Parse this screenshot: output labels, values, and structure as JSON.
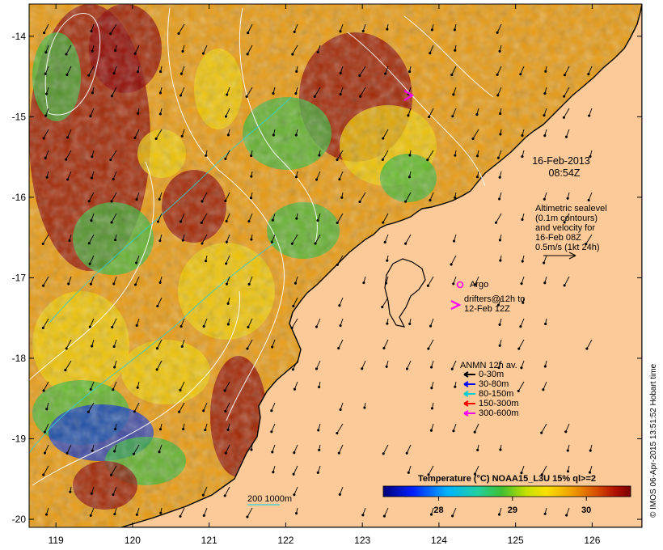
{
  "map": {
    "x_ticks": [
      "119",
      "120",
      "121",
      "122",
      "123",
      "124",
      "125",
      "126"
    ],
    "y_ticks": [
      "-14",
      "-15",
      "-16",
      "-17",
      "-18",
      "-19",
      "-20"
    ],
    "x_range": [
      118.65,
      126.65
    ],
    "y_range": [
      -20.1,
      -13.6
    ]
  },
  "annotations": {
    "date": "16-Feb-2013",
    "time": "08:54Z",
    "altimetry": [
      "Altimetric sealevel",
      "(0.1m contours)",
      "and velocity for",
      "16-Feb 08Z",
      "0.5m/s (1kt 24h)"
    ],
    "argo_label": "Argo",
    "drifters_label": [
      "drifters@12h to",
      "12-Feb 12Z"
    ]
  },
  "legend": {
    "title": "ANMN 12h av.",
    "items": [
      {
        "label": "0-30m",
        "color": "#000000"
      },
      {
        "label": "30-80m",
        "color": "#0000ff"
      },
      {
        "label": "80-150m",
        "color": "#00d0d0"
      },
      {
        "label": "150-300m",
        "color": "#ff0000"
      },
      {
        "label": "300-600m",
        "color": "#ff00ff"
      }
    ],
    "bathy_label": "200  1000m"
  },
  "colorbar": {
    "title": "Temperature (°C) NOAA15_L3U 15% ql>=2",
    "ticks": [
      "28",
      "29",
      "30"
    ],
    "min": 27.25,
    "max": 30.6
  },
  "credit": "© IMOS 06-Apr-2015 13:51:52 Hobart time",
  "colors": {
    "land": "#fcc998",
    "hot": "#8b0000",
    "warm": "#e89a10",
    "mid": "#f2d000",
    "cool": "#38b838",
    "cold": "#0a2fd0"
  }
}
